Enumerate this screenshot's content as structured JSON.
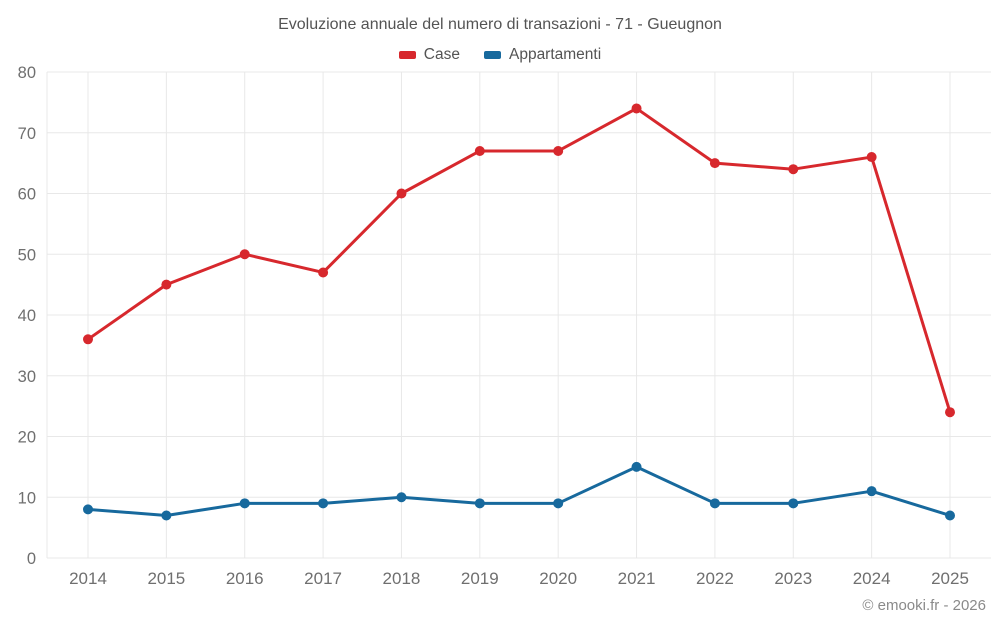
{
  "chart_data": {
    "type": "line",
    "title": "Evoluzione annuale del numero di transazioni - 71 - Gueugnon",
    "categories": [
      "2014",
      "2015",
      "2016",
      "2017",
      "2018",
      "2019",
      "2020",
      "2021",
      "2022",
      "2023",
      "2024",
      "2025"
    ],
    "series": [
      {
        "name": "Case",
        "color": "#d7282d",
        "values": [
          36,
          45,
          50,
          47,
          60,
          67,
          67,
          74,
          65,
          64,
          66,
          24
        ]
      },
      {
        "name": "Appartamenti",
        "color": "#17699d",
        "values": [
          8,
          7,
          9,
          9,
          10,
          9,
          9,
          15,
          9,
          9,
          11,
          7
        ]
      }
    ],
    "xlabel": "",
    "ylabel": "",
    "ylim": [
      0,
      80
    ],
    "y_ticks": [
      0,
      10,
      20,
      30,
      40,
      50,
      60,
      70,
      80
    ],
    "grid": true,
    "legend_position": "top"
  },
  "footer": {
    "credit": "© emooki.fr - 2026"
  },
  "colors": {
    "grid": "#e8e8e8",
    "tick_label": "#6f6f6f",
    "title_text": "#545454",
    "footer_text": "#8a8a8a",
    "background": "#ffffff"
  }
}
